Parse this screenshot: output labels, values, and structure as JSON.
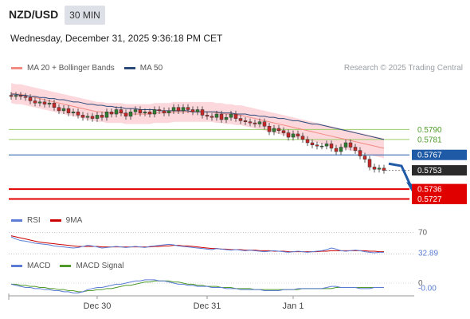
{
  "header": {
    "symbol": "NZD/USD",
    "timeframe": "30 MIN",
    "datetime": "Wednesday, December 31, 2025 9:36:18 PM CET",
    "credit": "Research © 2025 Trading Central"
  },
  "colors": {
    "candle_up": "#2e7d32",
    "candle_down": "#c62828",
    "bollinger_fill": "#fbd0d6",
    "ma20": "#f28b82",
    "ma50": "#2b4a7a",
    "support_line": "#e00000",
    "resistance_line": "#9ccc65",
    "pivot_line": "#1f5aa6",
    "rsi": "#5b7bd5",
    "rsi_ma": "#cc0000",
    "macd": "#5b7bd5",
    "macd_signal": "#4f9a2a"
  },
  "chart_data": [
    {
      "type": "candlestick",
      "panel": "price",
      "legend": [
        {
          "label": "MA 20 + Bollinger Bands",
          "color": "#f28b82"
        },
        {
          "label": "MA 50",
          "color": "#2b4a7a"
        }
      ],
      "ylim": [
        0.5718,
        0.5838
      ],
      "x_tick_labels": [
        "Dec 30",
        "Dec 31",
        "Jan 1"
      ],
      "x_tick_positions": [
        18,
        41,
        59
      ],
      "close": [
        0.582,
        0.5821,
        0.582,
        0.5819,
        0.5816,
        0.5814,
        0.5815,
        0.5813,
        0.5814,
        0.581,
        0.5807,
        0.5809,
        0.5805,
        0.5806,
        0.5803,
        0.5801,
        0.5802,
        0.58,
        0.5803,
        0.5801,
        0.5806,
        0.5804,
        0.5808,
        0.5805,
        0.5802,
        0.5806,
        0.5808,
        0.5805,
        0.5806,
        0.5804,
        0.5808,
        0.5807,
        0.5805,
        0.5807,
        0.581,
        0.5807,
        0.581,
        0.5808,
        0.5806,
        0.5808,
        0.5803,
        0.5802,
        0.5801,
        0.5804,
        0.5799,
        0.5801,
        0.5804,
        0.58,
        0.5798,
        0.5797,
        0.5796,
        0.5795,
        0.5797,
        0.5793,
        0.5788,
        0.5791,
        0.5789,
        0.5787,
        0.5783,
        0.5786,
        0.5784,
        0.5781,
        0.5778,
        0.5776,
        0.5775,
        0.5775,
        0.5777,
        0.5773,
        0.577,
        0.5774,
        0.5778,
        0.5774,
        0.5771,
        0.5766,
        0.5763,
        0.5756,
        0.5754,
        0.5755,
        0.5753
      ],
      "ma20": [
        0.5823,
        0.5822,
        0.5822,
        0.5821,
        0.582,
        0.5819,
        0.5818,
        0.5817,
        0.5816,
        0.5815,
        0.5814,
        0.5813,
        0.5812,
        0.5811,
        0.581,
        0.5809,
        0.5808,
        0.5807,
        0.5806,
        0.5806,
        0.5805,
        0.5805,
        0.5805,
        0.5805,
        0.5804,
        0.5804,
        0.5804,
        0.5804,
        0.5804,
        0.5804,
        0.5805,
        0.5805,
        0.5805,
        0.5805,
        0.5806,
        0.5806,
        0.5806,
        0.5806,
        0.5806,
        0.5806,
        0.5806,
        0.5806,
        0.5806,
        0.5805,
        0.5805,
        0.5804,
        0.5804,
        0.5803,
        0.5803,
        0.5802,
        0.5801,
        0.58,
        0.5799,
        0.5798,
        0.5797,
        0.5796,
        0.5795,
        0.5794,
        0.5793,
        0.5792,
        0.5791,
        0.579,
        0.5789,
        0.5788,
        0.5787,
        0.5786,
        0.5785,
        0.5784,
        0.5783,
        0.5782,
        0.5781,
        0.578,
        0.5779,
        0.5778,
        0.5777,
        0.5776,
        0.5775,
        0.5774,
        0.5773
      ],
      "ma50": [
        0.5822,
        0.5822,
        0.5821,
        0.5821,
        0.582,
        0.582,
        0.5819,
        0.5819,
        0.5818,
        0.5818,
        0.5817,
        0.5817,
        0.5816,
        0.5815,
        0.5815,
        0.5814,
        0.5813,
        0.5813,
        0.5812,
        0.5812,
        0.5811,
        0.5811,
        0.581,
        0.581,
        0.5809,
        0.5809,
        0.5809,
        0.5808,
        0.5808,
        0.5808,
        0.5808,
        0.5807,
        0.5807,
        0.5807,
        0.5807,
        0.5807,
        0.5807,
        0.5807,
        0.5806,
        0.5806,
        0.5806,
        0.5806,
        0.5806,
        0.5806,
        0.5805,
        0.5805,
        0.5805,
        0.5804,
        0.5804,
        0.5804,
        0.5803,
        0.5803,
        0.5802,
        0.5802,
        0.5801,
        0.5801,
        0.58,
        0.58,
        0.5799,
        0.5798,
        0.5798,
        0.5797,
        0.5796,
        0.5795,
        0.5795,
        0.5794,
        0.5793,
        0.5792,
        0.5791,
        0.579,
        0.5789,
        0.5788,
        0.5787,
        0.5786,
        0.5785,
        0.5784,
        0.5783,
        0.5782,
        0.5781
      ],
      "bb_width": 0.0009,
      "levels": [
        {
          "label": "0.5790",
          "value": 0.579,
          "kind": "resistance"
        },
        {
          "label": "0.5781",
          "value": 0.5781,
          "kind": "resistance"
        },
        {
          "label": "0.5767",
          "value": 0.5767,
          "kind": "pivot"
        },
        {
          "label": "0.5753",
          "value": 0.5753,
          "kind": "last"
        },
        {
          "label": "0.5736",
          "value": 0.5736,
          "kind": "support"
        },
        {
          "label": "0.5727",
          "value": 0.5727,
          "kind": "support"
        }
      ],
      "forecast_arrow": {
        "from": 0.5759,
        "via": 0.5757,
        "to": 0.5736
      }
    },
    {
      "type": "line",
      "panel": "rsi",
      "legend": [
        {
          "label": "RSI",
          "color": "#5b7bd5"
        },
        {
          "label": "9MA",
          "color": "#cc0000"
        }
      ],
      "ylim": [
        20,
        80
      ],
      "reference_line": {
        "label": "70",
        "value": 70
      },
      "last_value_label": "32.89",
      "rsi": [
        62,
        58,
        55,
        54,
        52,
        50,
        49,
        48,
        47,
        45,
        44,
        43,
        42,
        41,
        42,
        44,
        46,
        45,
        43,
        41,
        42,
        43,
        44,
        43,
        42,
        43,
        44,
        43,
        42,
        44,
        45,
        46,
        47,
        48,
        47,
        45,
        44,
        43,
        42,
        41,
        40,
        39,
        38,
        40,
        39,
        38,
        37,
        38,
        37,
        36,
        37,
        36,
        35,
        34,
        35,
        36,
        35,
        34,
        33,
        34,
        35,
        34,
        33,
        34,
        35,
        36,
        38,
        41,
        39,
        36,
        35,
        36,
        37,
        36,
        34,
        33,
        32,
        33,
        33
      ],
      "ma9": [
        64,
        62,
        60,
        58,
        56,
        54,
        52,
        51,
        50,
        49,
        48,
        47,
        46,
        45,
        44,
        44,
        44,
        44,
        44,
        43,
        43,
        43,
        43,
        43,
        43,
        43,
        43,
        43,
        43,
        43,
        44,
        44,
        45,
        45,
        46,
        46,
        45,
        45,
        44,
        43,
        42,
        41,
        40,
        40,
        39,
        39,
        38,
        38,
        38,
        37,
        37,
        37,
        36,
        36,
        36,
        35,
        35,
        35,
        34,
        34,
        34,
        34,
        34,
        34,
        34,
        35,
        35,
        36,
        36,
        36,
        36,
        36,
        36,
        36,
        36,
        35,
        35,
        34,
        34
      ]
    },
    {
      "type": "line",
      "panel": "macd",
      "legend": [
        {
          "label": "MACD",
          "color": "#5b7bd5"
        },
        {
          "label": "MACD Signal",
          "color": "#4f9a2a"
        }
      ],
      "ylim": [
        -0.0011,
        0.0011
      ],
      "reference_line": {
        "label": "0",
        "value": 0
      },
      "last_value_label": "-0.00",
      "macd": [
        -0.0001,
        -0.0002,
        -0.0003,
        -0.0004,
        -0.0004,
        -0.0005,
        -0.0005,
        -0.0006,
        -0.0006,
        -0.0007,
        -0.0007,
        -0.0008,
        -0.0008,
        -0.0009,
        -0.0009,
        -0.0008,
        -0.0006,
        -0.0005,
        -0.0004,
        -0.0004,
        -0.0003,
        -0.0002,
        -0.0001,
        -0.0001,
        0.0,
        0.0001,
        0.0002,
        0.0002,
        0.0003,
        0.0003,
        0.0003,
        0.0002,
        0.0002,
        0.0001,
        0.0,
        -0.0001,
        -0.0001,
        -0.0002,
        -0.0002,
        -0.0003,
        -0.0003,
        -0.0003,
        -0.0004,
        -0.0004,
        -0.0004,
        -0.0005,
        -0.0005,
        -0.0005,
        -0.0006,
        -0.0006,
        -0.0006,
        -0.0006,
        -0.0006,
        -0.0007,
        -0.0007,
        -0.0007,
        -0.0007,
        -0.0006,
        -0.0006,
        -0.0006,
        -0.0005,
        -0.0005,
        -0.0005,
        -0.0005,
        -0.0005,
        -0.0005,
        -0.0004,
        -0.0003,
        -0.0003,
        -0.0004,
        -0.0004,
        -0.0004,
        -0.0004,
        -0.0005,
        -0.0005,
        -0.0005,
        -0.0004,
        -0.0004,
        -0.0004
      ],
      "signal": [
        -0.0001,
        -0.0001,
        -0.0002,
        -0.0002,
        -0.0003,
        -0.0003,
        -0.0004,
        -0.0004,
        -0.0005,
        -0.0005,
        -0.0006,
        -0.0006,
        -0.0007,
        -0.0007,
        -0.0008,
        -0.0008,
        -0.0007,
        -0.0007,
        -0.0006,
        -0.0006,
        -0.0005,
        -0.0005,
        -0.0004,
        -0.0003,
        -0.0002,
        -0.0002,
        -0.0001,
        0.0,
        0.0001,
        0.0001,
        0.0002,
        0.0002,
        0.0002,
        0.0002,
        0.0001,
        0.0001,
        0.0,
        -0.0001,
        -0.0001,
        -0.0002,
        -0.0002,
        -0.0003,
        -0.0003,
        -0.0003,
        -0.0004,
        -0.0004,
        -0.0004,
        -0.0005,
        -0.0005,
        -0.0005,
        -0.0005,
        -0.0006,
        -0.0006,
        -0.0006,
        -0.0006,
        -0.0006,
        -0.0006,
        -0.0006,
        -0.0006,
        -0.0006,
        -0.0006,
        -0.0005,
        -0.0005,
        -0.0005,
        -0.0005,
        -0.0005,
        -0.0005,
        -0.0005,
        -0.0004,
        -0.0004,
        -0.0004,
        -0.0004,
        -0.0004,
        -0.0004,
        -0.0004,
        -0.0004,
        -0.0004,
        -0.0004,
        -0.0004
      ]
    }
  ]
}
